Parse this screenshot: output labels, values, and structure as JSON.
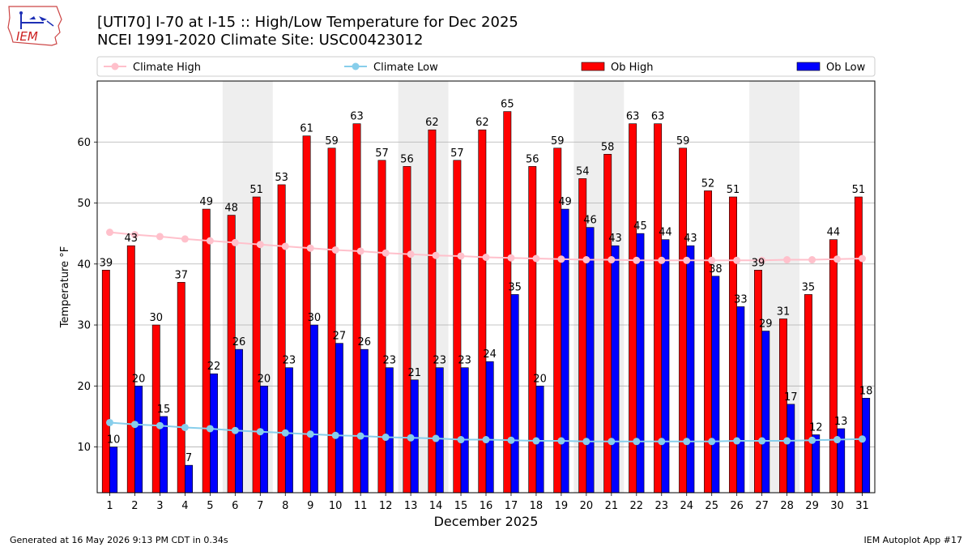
{
  "header": {
    "title_line1": "[UTI70] I-70 at I-15  :: High/Low Temperature for Dec 2025",
    "title_line2": "NCEI 1991-2020 Climate Site: USC00423012",
    "logo_text": "IEM"
  },
  "footer": {
    "generated": "Generated at 16 May 2026 9:13 PM CDT in 0.34s",
    "app": "IEM Autoplot App #17"
  },
  "colors": {
    "ob_high": "#ff0000",
    "ob_low": "#0000ff",
    "climate_high": "#ffc0cb",
    "climate_low": "#87ceeb",
    "weekend_shade": "#eeeeee",
    "grid": "#b0b0b0"
  },
  "chart_data": {
    "type": "bar",
    "xlabel": "December 2025",
    "ylabel": "Temperature °F",
    "ylim": [
      2.5,
      70
    ],
    "yticks": [
      10,
      20,
      30,
      40,
      50,
      60
    ],
    "grid": "y",
    "legend_placement": "top, above plot",
    "shaded_days": [
      [
        6,
        7
      ],
      [
        13,
        14
      ],
      [
        20,
        21
      ],
      [
        27,
        28
      ]
    ],
    "categories": [
      1,
      2,
      3,
      4,
      5,
      6,
      7,
      8,
      9,
      10,
      11,
      12,
      13,
      14,
      15,
      16,
      17,
      18,
      19,
      20,
      21,
      22,
      23,
      24,
      25,
      26,
      27,
      28,
      29,
      30,
      31
    ],
    "series": [
      {
        "name": "Ob High",
        "kind": "bar",
        "values": [
          39,
          43,
          30,
          37,
          49,
          48,
          51,
          53,
          61,
          59,
          63,
          57,
          56,
          62,
          57,
          62,
          65,
          56,
          59,
          54,
          58,
          63,
          63,
          59,
          52,
          51,
          39,
          31,
          35,
          44,
          51
        ]
      },
      {
        "name": "Ob Low",
        "kind": "bar",
        "values": [
          10,
          20,
          15,
          7,
          22,
          26,
          20,
          23,
          30,
          27,
          26,
          23,
          21,
          23,
          23,
          24,
          35,
          20,
          49,
          46,
          43,
          45,
          44,
          43,
          38,
          33,
          29,
          17,
          12,
          13,
          18
        ]
      },
      {
        "name": "Climate High",
        "kind": "line",
        "values": [
          45.2,
          44.8,
          44.5,
          44.1,
          43.8,
          43.5,
          43.2,
          42.9,
          42.6,
          42.3,
          42.1,
          41.8,
          41.6,
          41.4,
          41.3,
          41.1,
          41.0,
          40.9,
          40.8,
          40.7,
          40.7,
          40.6,
          40.6,
          40.6,
          40.6,
          40.6,
          40.6,
          40.7,
          40.7,
          40.8,
          40.9
        ]
      },
      {
        "name": "Climate Low",
        "kind": "line",
        "values": [
          14.0,
          13.7,
          13.5,
          13.2,
          13.0,
          12.7,
          12.5,
          12.3,
          12.1,
          11.9,
          11.8,
          11.6,
          11.5,
          11.4,
          11.2,
          11.2,
          11.1,
          11.0,
          11.0,
          10.9,
          10.9,
          10.9,
          10.9,
          10.9,
          10.9,
          11.0,
          11.0,
          11.0,
          11.1,
          11.2,
          11.3
        ]
      }
    ]
  }
}
